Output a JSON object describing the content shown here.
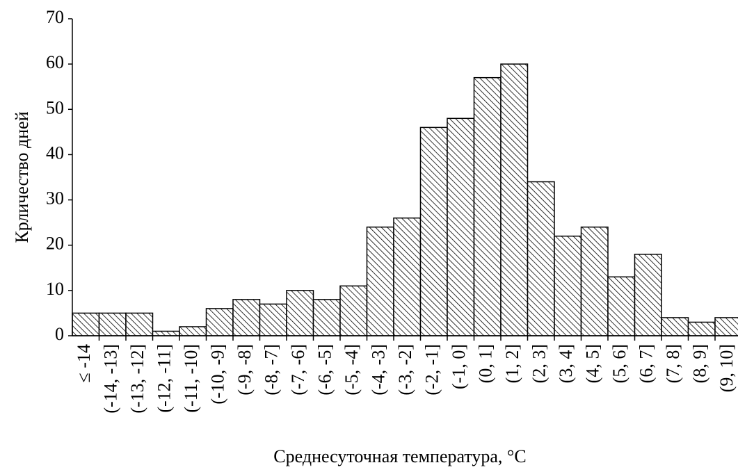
{
  "chart_data": {
    "type": "bar",
    "x_label": "Среднесуточная температура, °C",
    "y_label": "Крличество дней",
    "categories": [
      "≤ -14",
      "(-14, -13]",
      "(-13, -12]",
      "(-12, -11]",
      "(-11, -10]",
      "(-10, -9]",
      "(-9, -8]",
      "(-8, -7]",
      "(-7, -6]",
      "(-6, -5]",
      "(-5, -4]",
      "(-4, -3]",
      "(-3, -2]",
      "(-2, -1]",
      "(-1, 0]",
      "(0, 1]",
      "(1, 2]",
      "(2, 3]",
      "(3, 4]",
      "(4, 5]",
      "(5, 6]",
      "(6, 7]",
      "(7, 8]",
      "(8, 9]",
      "(9, 10]"
    ],
    "values": [
      5,
      5,
      5,
      1,
      2,
      6,
      8,
      7,
      10,
      8,
      11,
      24,
      26,
      46,
      48,
      57,
      60,
      34,
      22,
      24,
      13,
      18,
      4,
      3,
      4
    ],
    "color": "#000000",
    "ylim": [
      0,
      70
    ],
    "yticks": [
      0,
      10,
      20,
      30,
      40,
      50,
      60,
      70
    ],
    "grid": false
  }
}
